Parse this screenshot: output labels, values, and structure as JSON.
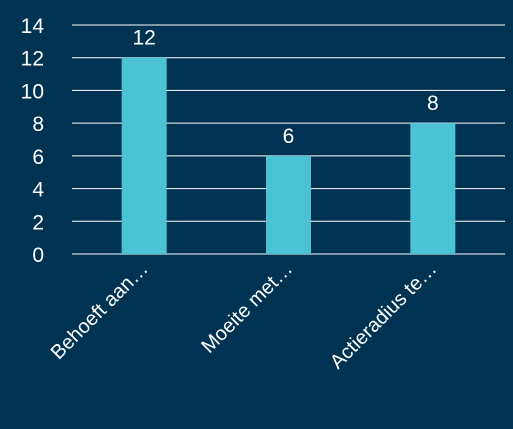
{
  "chart_data": {
    "type": "bar",
    "categories": [
      "Behoeft aan…",
      "Moeite met…",
      "Actieradius te…"
    ],
    "values": [
      12,
      6,
      8
    ],
    "data_labels": [
      "12",
      "6",
      "8"
    ],
    "ylim": [
      0,
      14
    ],
    "y_ticks": [
      "0",
      "2",
      "4",
      "6",
      "8",
      "10",
      "12",
      "14"
    ],
    "grid": true,
    "legend": "none",
    "colors": {
      "background": "#003352",
      "bar": "#4BC3D4",
      "text": "#FFFFFF",
      "gridline": "#FFFFFF"
    }
  }
}
